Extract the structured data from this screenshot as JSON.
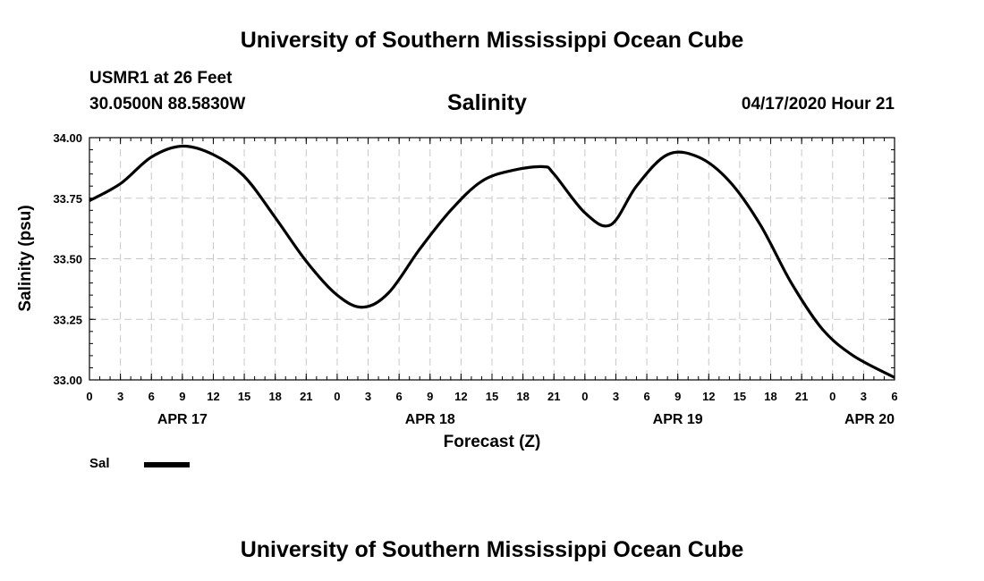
{
  "header": {
    "title_top": "University of Southern Mississippi Ocean Cube",
    "station": "USMR1 at 26 Feet",
    "coords": "30.0500N 88.5830W",
    "chart_title": "Salinity",
    "datetime": "04/17/2020 Hour 21",
    "title_bottom": "University of Southern Mississippi Ocean Cube"
  },
  "legend": {
    "label": "Sal",
    "color": "#000000"
  },
  "chart_data": {
    "type": "line",
    "title": "Salinity",
    "xlabel": "Forecast (Z)",
    "ylabel": "Salinity (psu)",
    "ylim": [
      33.0,
      34.0
    ],
    "xlim": [
      0,
      78
    ],
    "grid": true,
    "legend_position": "bottom-left",
    "y_ticks": [
      "33.00",
      "33.25",
      "33.50",
      "33.75",
      "34.00"
    ],
    "x_tick_labels": [
      "0",
      "3",
      "6",
      "9",
      "12",
      "15",
      "18",
      "21",
      "0",
      "3",
      "6",
      "9",
      "12",
      "15",
      "18",
      "21",
      "0",
      "3",
      "6",
      "9",
      "12",
      "15",
      "18",
      "21",
      "0",
      "3",
      "6"
    ],
    "date_labels": [
      {
        "label": "APR 17",
        "hour": 9
      },
      {
        "label": "APR 18",
        "hour": 33
      },
      {
        "label": "APR 19",
        "hour": 57
      },
      {
        "label": "APR 20",
        "hour": 78
      }
    ],
    "series": [
      {
        "name": "Sal",
        "color": "#000000",
        "x": [
          0,
          3,
          6,
          9,
          12,
          15,
          18,
          21,
          24,
          26.5,
          29,
          32,
          35,
          38,
          41,
          44,
          45,
          48,
          50.5,
          53,
          56,
          59,
          62,
          65,
          68,
          71,
          74,
          78
        ],
        "y": [
          33.74,
          33.81,
          33.92,
          33.965,
          33.93,
          33.84,
          33.67,
          33.49,
          33.35,
          33.3,
          33.36,
          33.54,
          33.7,
          33.82,
          33.865,
          33.88,
          33.85,
          33.69,
          33.64,
          33.8,
          33.93,
          33.92,
          33.82,
          33.64,
          33.4,
          33.21,
          33.1,
          33.01
        ]
      }
    ]
  }
}
